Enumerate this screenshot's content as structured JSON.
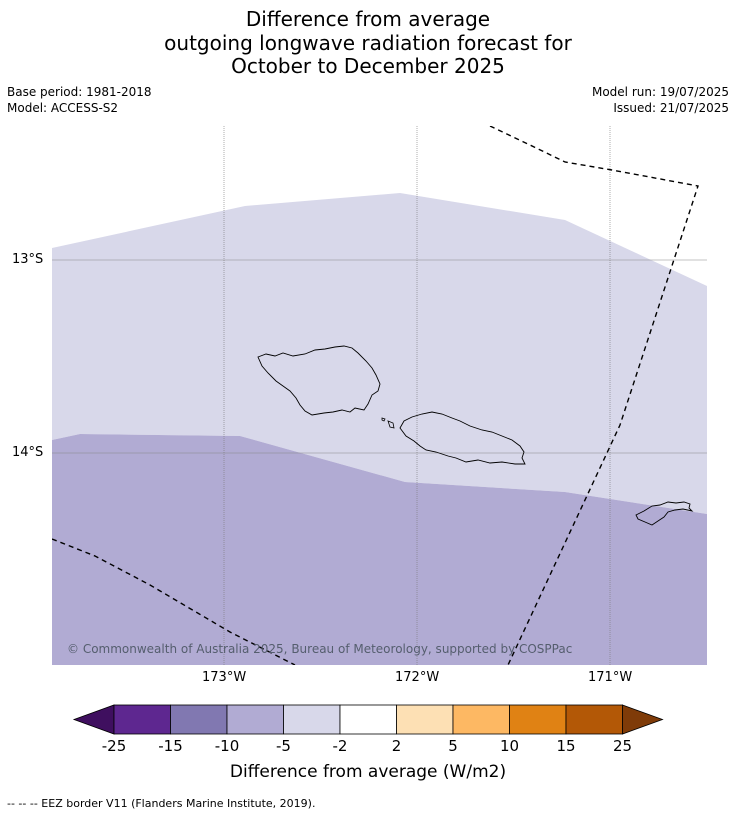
{
  "header": {
    "title_line1": "Difference from average",
    "title_line2": "outgoing longwave radiation forecast for",
    "title_line3": "October to December 2025",
    "base_period": "Base period: 1981-2018",
    "model": "Model: ACCESS-S2",
    "model_run": "Model run: 19/07/2025",
    "issued": "Issued: 21/07/2025"
  },
  "map": {
    "lat_labels": [
      "13°S",
      "14°S"
    ],
    "lon_labels": [
      "173°W",
      "172°W",
      "171°W"
    ],
    "copyright": "© Commonwealth of Australia 2025, Bureau of Meteorology, supported by COSPPac",
    "region_colors": {
      "band_-5_-2": "#d8d8ea",
      "band_-10_-5": "#b1abd3"
    }
  },
  "colorbar": {
    "label": "Difference from average (W/m2)",
    "ticks": [
      "-25",
      "-15",
      "-10",
      "-5",
      "-2",
      "2",
      "5",
      "10",
      "15",
      "25"
    ],
    "colors": [
      "#3f0f5f",
      "#5e2790",
      "#8178b1",
      "#b1abd3",
      "#d8d8ea",
      "#ffffff",
      "#fde0b4",
      "#fdb863",
      "#e08214",
      "#b35806",
      "#7f3b08"
    ]
  },
  "footnote": "--  --  -- EEZ border V11 (Flanders Marine Institute, 2019)."
}
